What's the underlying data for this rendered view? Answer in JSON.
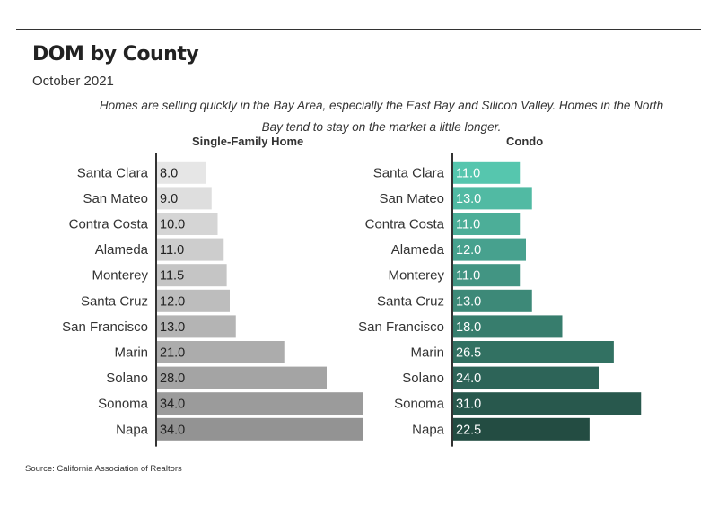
{
  "title": "DOM by County",
  "subtitle": "October 2021",
  "note": "Homes are selling quickly in the Bay Area, especially the East Bay and Silicon Valley. Homes in the North Bay tend to stay on the market a little longer.",
  "source": "Source:  California Association of Realtors",
  "chart_data": [
    {
      "type": "bar",
      "orientation": "horizontal",
      "title": "Single-Family Home",
      "categories": [
        "Santa Clara",
        "San Mateo",
        "Contra Costa",
        "Alameda",
        "Monterey",
        "Santa Cruz",
        "San Francisco",
        "Marin",
        "Solano",
        "Sonoma",
        "Napa"
      ],
      "values": [
        8.0,
        9.0,
        10.0,
        11.0,
        11.5,
        12.0,
        13.0,
        21.0,
        28.0,
        34.0,
        34.0
      ],
      "color_low": "#e6e6e6",
      "color_high": "#939393",
      "grid": false
    },
    {
      "type": "bar",
      "orientation": "horizontal",
      "title": "Condo",
      "categories": [
        "Santa Clara",
        "San Mateo",
        "Contra Costa",
        "Alameda",
        "Monterey",
        "Santa Cruz",
        "San Francisco",
        "Marin",
        "Solano",
        "Sonoma",
        "Napa"
      ],
      "values": [
        11.0,
        13.0,
        11.0,
        12.0,
        11.0,
        13.0,
        18.0,
        26.5,
        24.0,
        31.0,
        22.5
      ],
      "color_low": "#56c6ae",
      "color_high": "#234c42",
      "grid": false
    }
  ]
}
